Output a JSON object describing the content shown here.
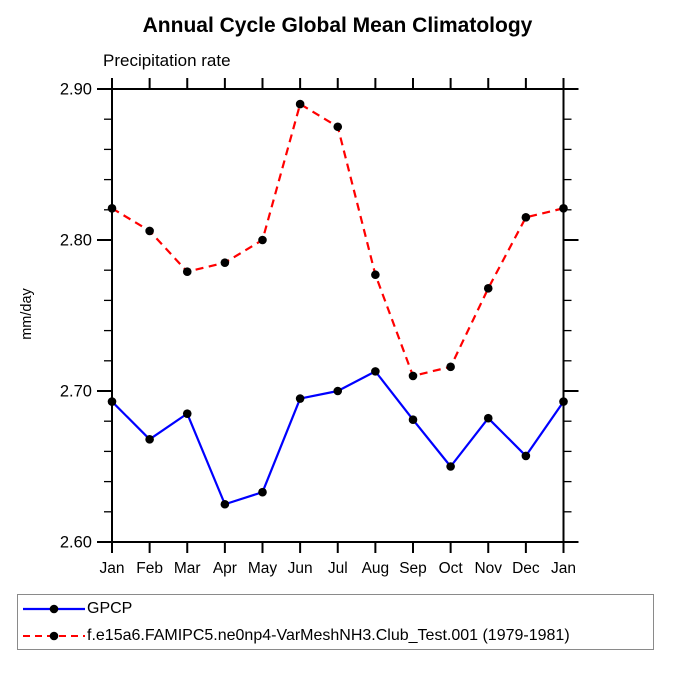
{
  "title": "Annual Cycle Global Mean Climatology",
  "subtitle": "Precipitation rate",
  "legend": {
    "items": [
      {
        "label": "GPCP",
        "color": "#0000ff",
        "line_style": "solid"
      },
      {
        "label": "f.e15a6.FAMIPC5.ne0np4-VarMeshNH3.Club_Test.001 (1979-1981)",
        "color": "#ff0000",
        "line_style": "dashed"
      }
    ]
  },
  "colors": {
    "axis": "#000000",
    "marker": "#000000",
    "gpcp_line": "#0000ff",
    "model_line": "#ff0000"
  },
  "chart_data": {
    "type": "line",
    "title": "Annual Cycle Global Mean Climatology",
    "subtitle": "Precipitation rate",
    "xlabel": "",
    "ylabel": "mm/day",
    "categories": [
      "Jan",
      "Feb",
      "Mar",
      "Apr",
      "May",
      "Jun",
      "Jul",
      "Aug",
      "Sep",
      "Oct",
      "Nov",
      "Dec",
      "Jan"
    ],
    "ylim": [
      2.6,
      2.9
    ],
    "y_major_ticks": [
      2.6,
      2.7,
      2.8,
      2.9
    ],
    "y_tick_labels": [
      "2.60",
      "2.70",
      "2.80",
      "2.90"
    ],
    "y_minor_step": 0.02,
    "grid": false,
    "legend_position": "bottom",
    "series": [
      {
        "name": "GPCP",
        "color": "#0000ff",
        "line_style": "solid",
        "marker": "circle",
        "values": [
          2.693,
          2.668,
          2.685,
          2.625,
          2.633,
          2.695,
          2.7,
          2.713,
          2.681,
          2.65,
          2.682,
          2.657,
          2.693
        ]
      },
      {
        "name": "f.e15a6.FAMIPC5.ne0np4-VarMeshNH3.Club_Test.001 (1979-1981)",
        "color": "#ff0000",
        "line_style": "dashed",
        "marker": "circle",
        "values": [
          2.821,
          2.806,
          2.779,
          2.785,
          2.8,
          2.89,
          2.875,
          2.777,
          2.71,
          2.716,
          2.768,
          2.815,
          2.821
        ]
      }
    ]
  }
}
